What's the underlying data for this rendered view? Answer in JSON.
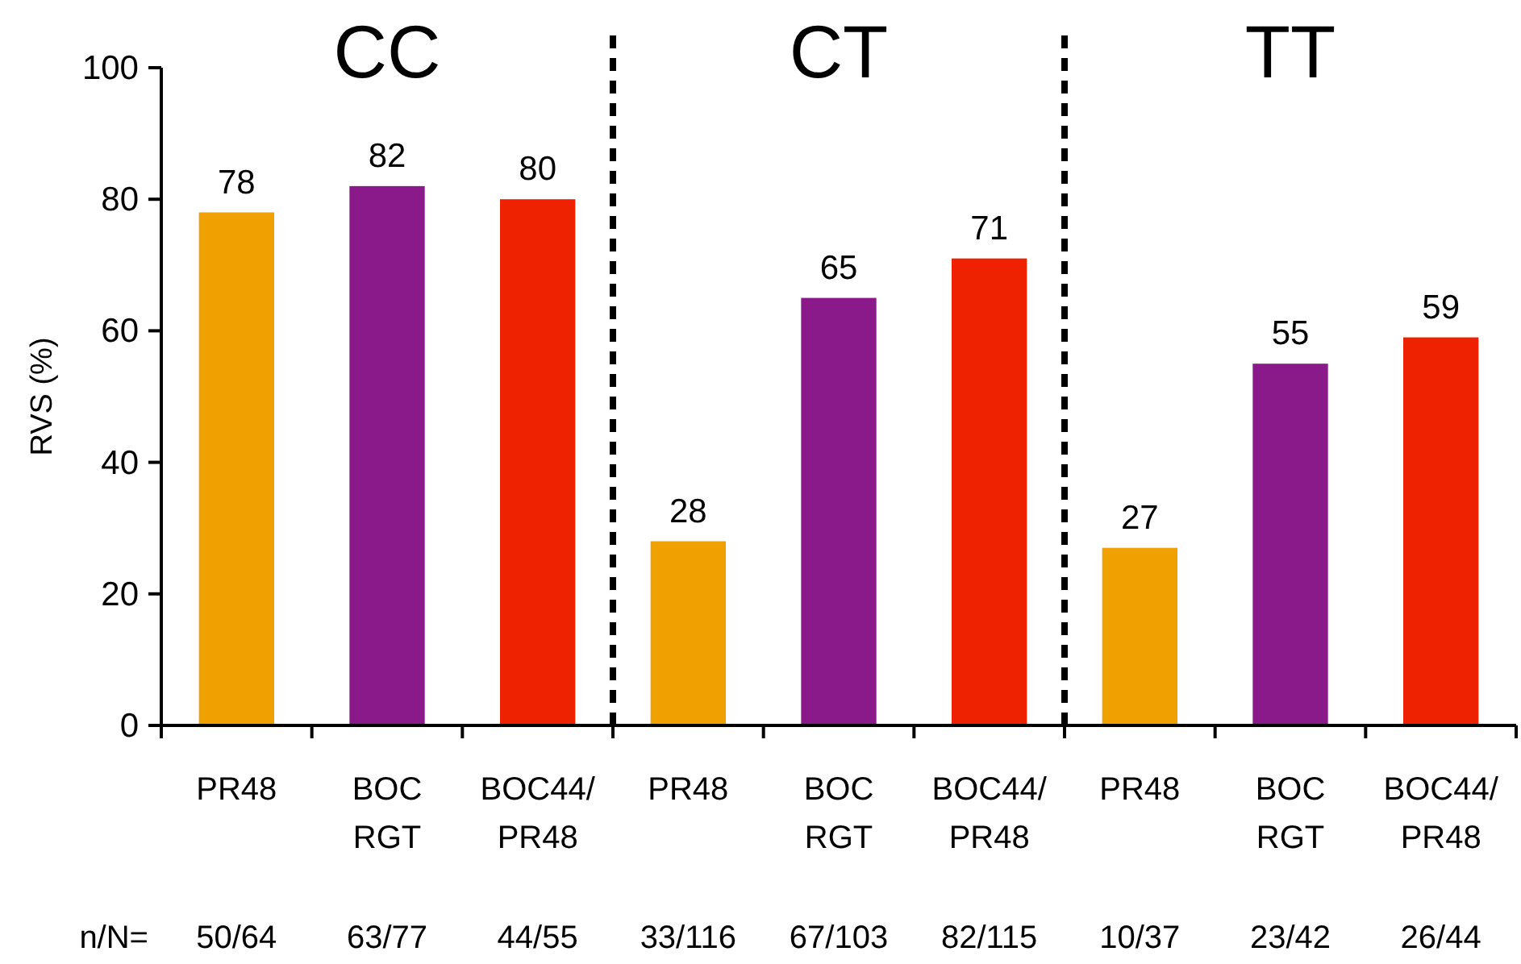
{
  "chart_data": {
    "type": "bar",
    "ylabel": "RVS (%)",
    "categories": [
      "PR48",
      "BOC\nRGT",
      "BOC44/\nPR48",
      "PR48",
      "BOC\nRGT",
      "BOC44/\nPR48",
      "PR48",
      "BOC\nRGT",
      "BOC44/\nPR48"
    ],
    "values": [
      78,
      82,
      80,
      28,
      65,
      71,
      27,
      55,
      59
    ],
    "colors": [
      "#f0a000",
      "#8a1a8a",
      "#ee2200",
      "#f0a000",
      "#8a1a8a",
      "#ee2200",
      "#f0a000",
      "#8a1a8a",
      "#ee2200"
    ],
    "ylim": [
      0,
      100
    ],
    "yticks": [
      0,
      20,
      40,
      60,
      80,
      100
    ],
    "data_labels": true,
    "annotations": [
      "CC",
      "CT",
      "TT",
      "n/N=",
      "50/64",
      "63/77",
      "44/55",
      "33/116",
      "67/103",
      "82/115",
      "10/37",
      "23/42",
      "26/44"
    ]
  }
}
